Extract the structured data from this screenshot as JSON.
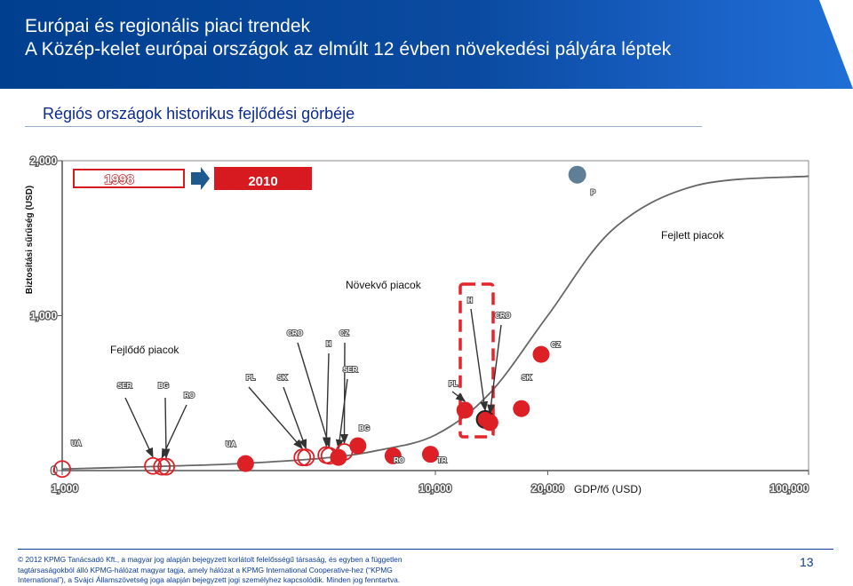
{
  "header": {
    "title": "Európai és regionális piaci trendek",
    "subtitle": "A Közép-kelet európai országok az elmúlt 12 évben növekedési pályára léptek"
  },
  "section_title": "Régiós országok historikus fejlődési görbéje",
  "colors": {
    "header_blue": "#003f8f",
    "marker_red": "#dd1f26",
    "curve_gray": "#666666",
    "highlight_red": "#e5242b",
    "marker_blue_gray": "#5e7f96"
  },
  "chart_data": {
    "type": "scatter",
    "title": "",
    "xlabel": "GDP/fő (USD)",
    "ylabel": "Biztosítási sűrűség (USD)",
    "x_scale": "log",
    "x_ticks": [
      "1,000",
      "10,000",
      "20,000",
      "100,000"
    ],
    "y_ticks": [
      "0",
      "1,000",
      "2,000"
    ],
    "xlim": [
      1000,
      100000
    ],
    "ylim": [
      0,
      2000
    ],
    "legend": {
      "year_1998": "1998",
      "year_2010": "2010",
      "arrow_icon": "right-arrow"
    },
    "annotations": {
      "developing": "Fejlődő piacok",
      "growing": "Növekvő piacok",
      "developed": "Fejlett piacok"
    },
    "series": [
      {
        "name": "1998",
        "points": [
          {
            "label": "UA",
            "x": 1000,
            "y": 10
          },
          {
            "label": "SER",
            "x": 1750,
            "y": 30
          },
          {
            "label": "BG",
            "x": 1900,
            "y": 25
          },
          {
            "label": "PL",
            "x": 4400,
            "y": 85
          },
          {
            "label": "SK",
            "x": 4500,
            "y": 85
          },
          {
            "label": "CRO",
            "x": 5200,
            "y": 95
          },
          {
            "label": "CZ",
            "x": 5700,
            "y": 120
          },
          {
            "label": "RO",
            "x": 1850,
            "y": 25
          },
          {
            "label": "H",
            "x": 5100,
            "y": 100
          }
        ]
      },
      {
        "name": "2010",
        "points": [
          {
            "label": "UA",
            "x": 3100,
            "y": 45
          },
          {
            "label": "RO",
            "x": 7700,
            "y": 95
          },
          {
            "label": "TR",
            "x": 9700,
            "y": 105
          },
          {
            "label": "BG",
            "x": 6200,
            "y": 160
          },
          {
            "label": "SER",
            "x": 5500,
            "y": 85
          },
          {
            "label": "PL",
            "x": 12000,
            "y": 390
          },
          {
            "label": "H",
            "x": 13600,
            "y": 330
          },
          {
            "label": "CRO",
            "x": 14000,
            "y": 310
          },
          {
            "label": "SK",
            "x": 17000,
            "y": 400
          },
          {
            "label": "CZ",
            "x": 19200,
            "y": 750
          }
        ]
      },
      {
        "name": "P",
        "points": [
          {
            "label": "P",
            "x": 24000,
            "y": 1910
          }
        ]
      }
    ],
    "curve": {
      "x": [
        1000,
        2000,
        3000,
        5000,
        7000,
        10000,
        14000,
        20000,
        30000,
        50000,
        100000
      ],
      "y": [
        10,
        30,
        45,
        80,
        130,
        230,
        500,
        1000,
        1560,
        1840,
        1900
      ]
    },
    "grid": false
  },
  "footer": {
    "text": "© 2012 KPMG Tanácsadó Kft., a magyar jog alapján bejegyzett korlátolt felelősségű társaság, és egyben a független tagtársaságokból álló KPMG-hálózat magyar tagja, amely hálózat a KPMG International Cooperative-hez (“KPMG International”), a Svájci Államszövetség joga alapján bejegyzett jogi személyhez kapcsolódik. Minden jog fenntartva.",
    "page_number": "13"
  }
}
